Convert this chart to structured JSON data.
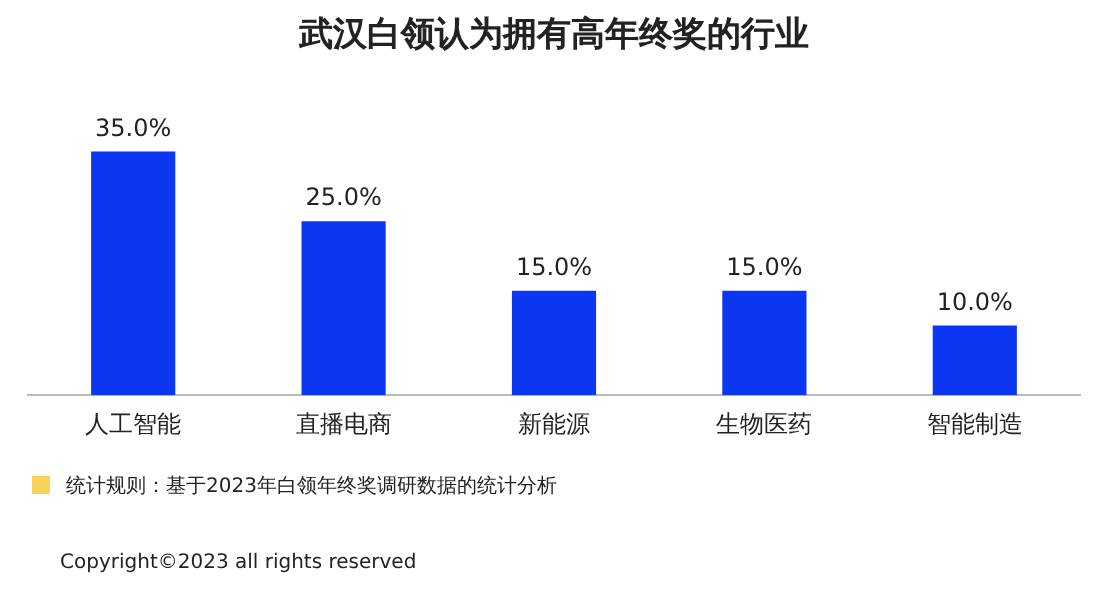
{
  "chart_data": {
    "type": "bar",
    "title": "武汉白领认为拥有高年终奖的行业",
    "categories": [
      "人工智能",
      "直播电商",
      "新能源",
      "生物医药",
      "智能制造"
    ],
    "values": [
      35.0,
      25.0,
      15.0,
      15.0,
      10.0
    ],
    "value_labels": [
      "35.0%",
      "25.0%",
      "15.0%",
      "15.0%",
      "10.0%"
    ],
    "color": "#0b36f2",
    "tick_labels": "x",
    "grid": false,
    "legend": false,
    "annotations": [
      "统计规则：基于2023年白领年终奖调研数据的统计分析",
      "Copyright©2023 all rights reserved"
    ]
  }
}
